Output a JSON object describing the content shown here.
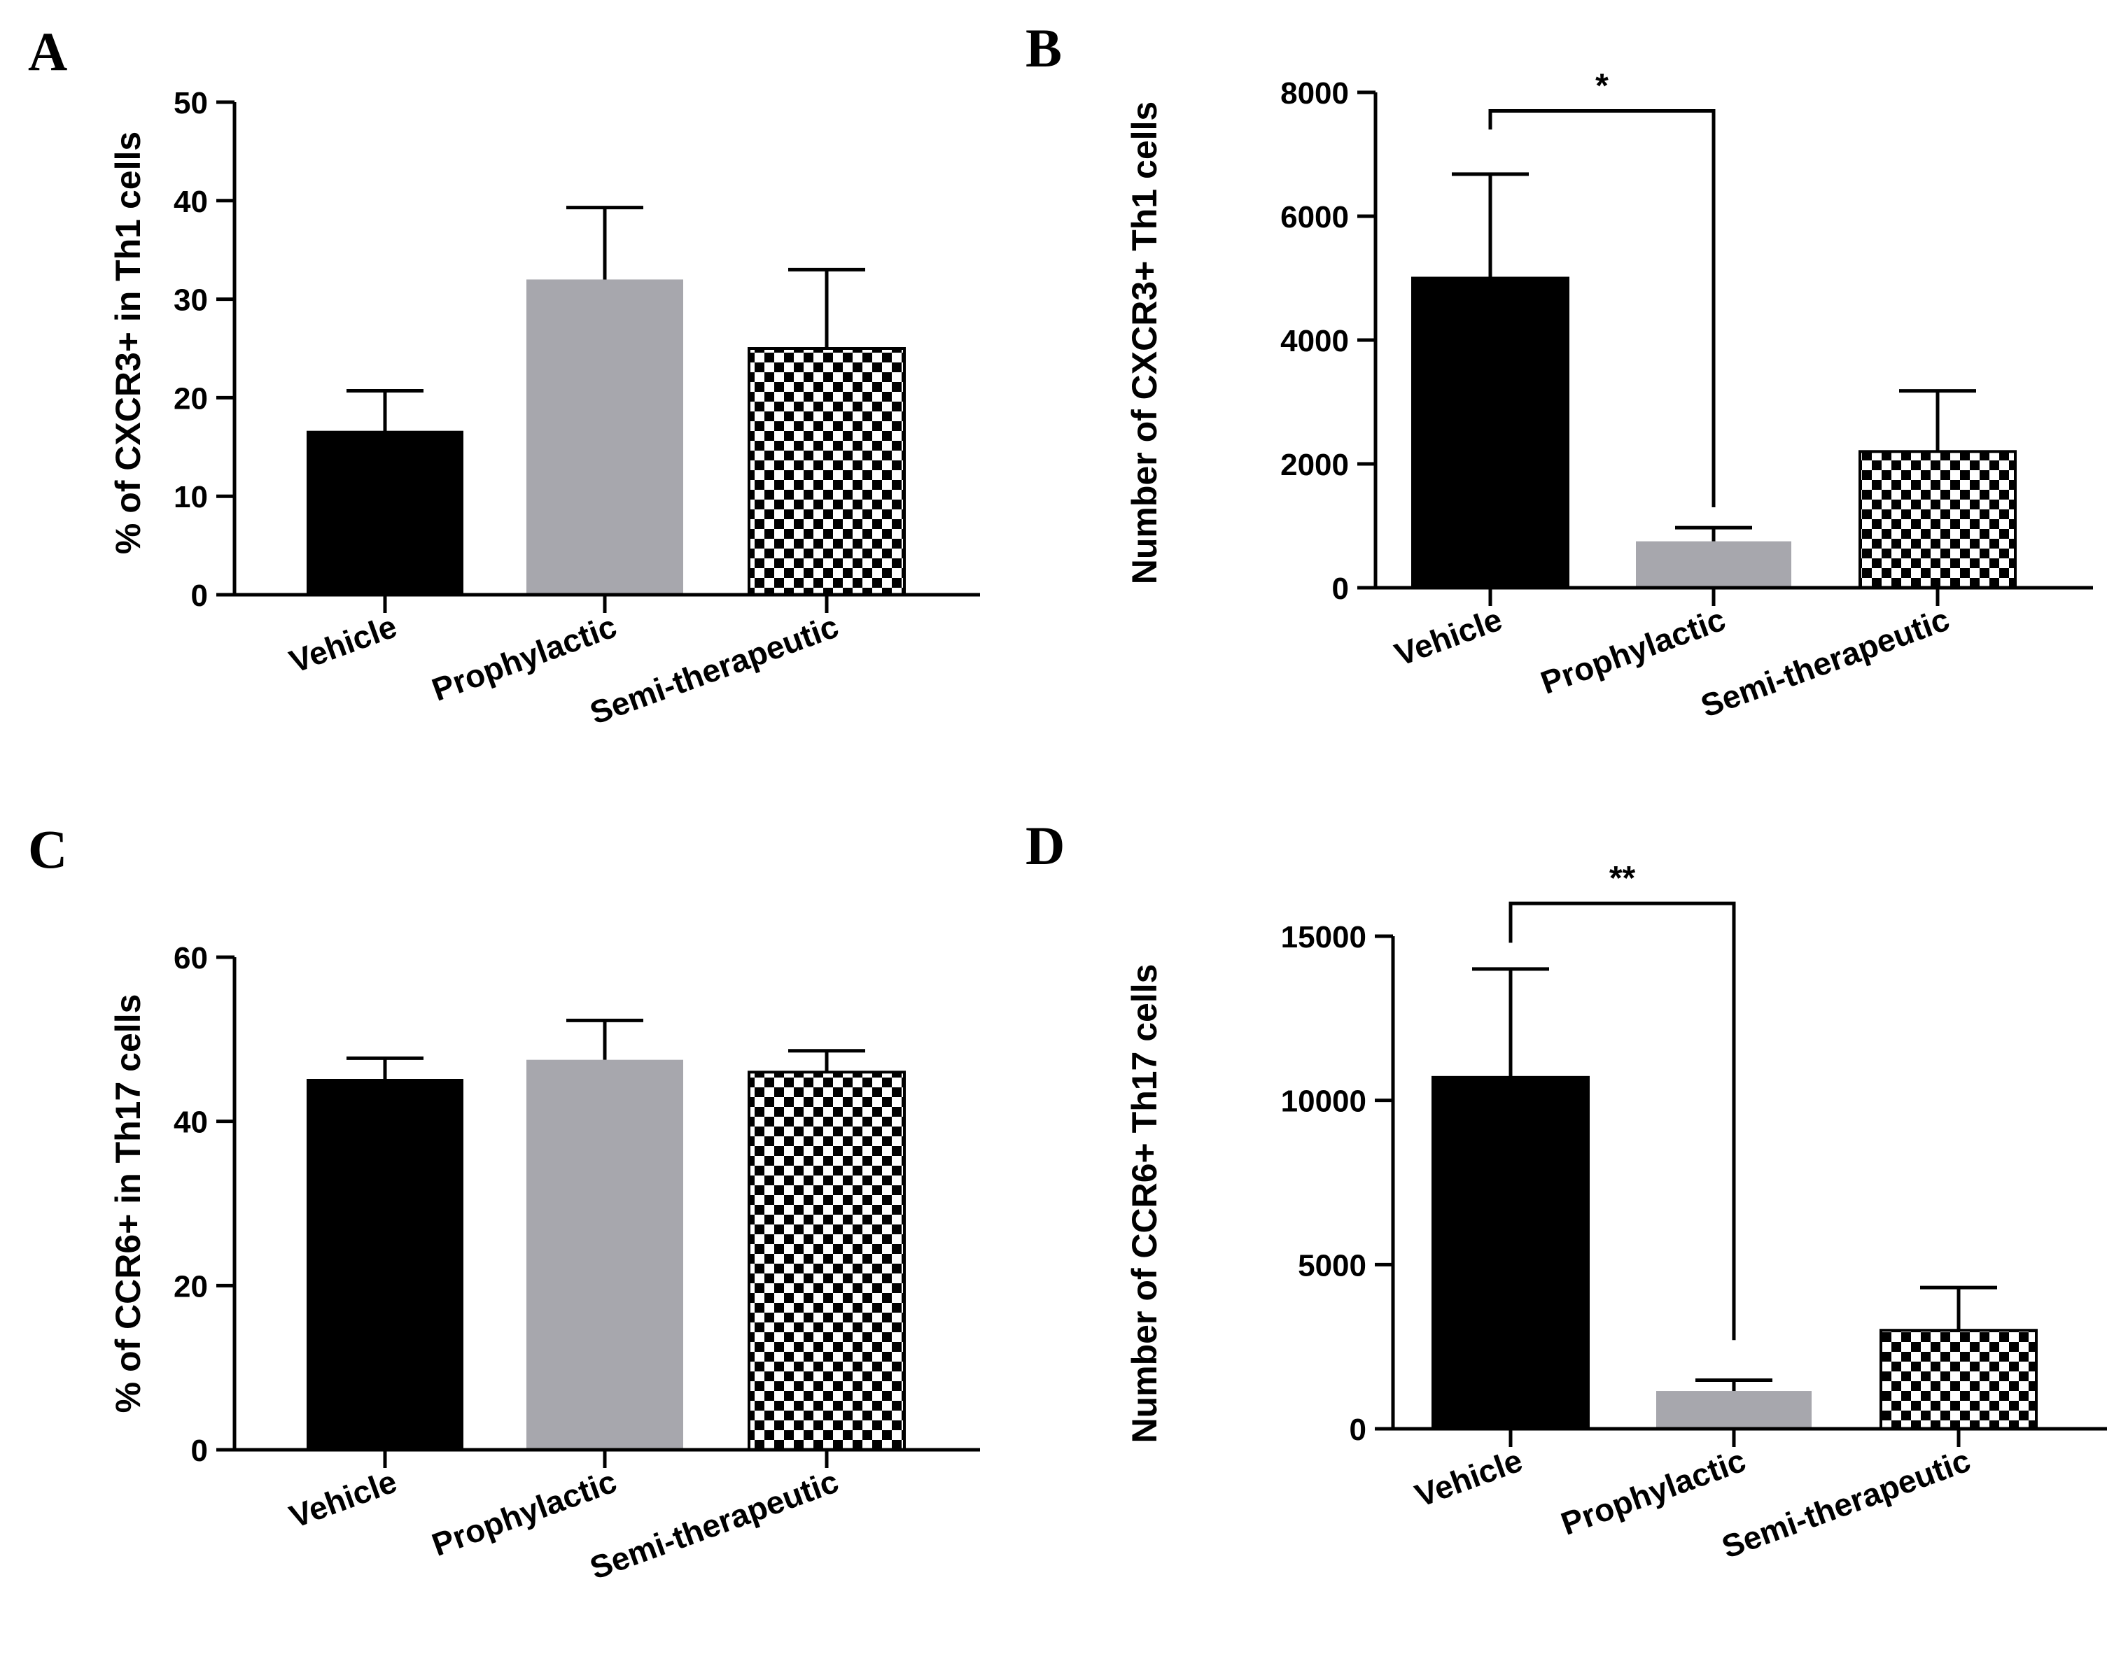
{
  "colors": {
    "vehicle": "#000000",
    "prophylactic": "#a7a7ad",
    "semi_therapeutic_pattern": "checkerboard-black-white",
    "axis": "#000000"
  },
  "chart_data": [
    {
      "panel": "A",
      "type": "bar",
      "categories": [
        "Vehicle",
        "Prophylactic",
        "Semi-therapeutic"
      ],
      "values": [
        16.5,
        32,
        25
      ],
      "errors": [
        4.2,
        7.3,
        8.0
      ],
      "ylabel": "% of CXCR3+ in Th1 cells",
      "xlabel": "",
      "ylim": [
        0,
        50
      ],
      "yticks": [
        0,
        10,
        20,
        30,
        40,
        50
      ],
      "ytick_labels": [
        "0",
        "10",
        "20",
        "30",
        "40",
        "50"
      ],
      "significance": null
    },
    {
      "panel": "B",
      "type": "bar",
      "categories": [
        "Vehicle",
        "Prophylactic",
        "Semi-therapeutic"
      ],
      "values": [
        5000,
        750,
        2200
      ],
      "errors": [
        1680,
        220,
        980
      ],
      "ylabel": "Number of CXCR3+ Th1 cells",
      "xlabel": "",
      "ylim": [
        0,
        8000
      ],
      "yticks": [
        0,
        2000,
        4000,
        6000,
        8000
      ],
      "ytick_labels": [
        "0",
        "2000",
        "4000",
        "6000",
        "8000"
      ],
      "significance": {
        "from": 0,
        "to": 1,
        "label": "*",
        "level": 7700,
        "drop_from": 7400,
        "drop_to": 1300
      }
    },
    {
      "panel": "C",
      "type": "bar",
      "categories": [
        "Vehicle",
        "Prophylactic",
        "Semi-therapeutic"
      ],
      "values": [
        45,
        47.5,
        46
      ],
      "errors": [
        2.7,
        4.8,
        2.6
      ],
      "ylabel": "% of CCR6+ in Th17 cells",
      "xlabel": "",
      "ylim": [
        0,
        60
      ],
      "yticks": [
        0,
        20,
        40,
        60
      ],
      "ytick_labels": [
        "0",
        "20",
        "40",
        "60"
      ],
      "significance": null
    },
    {
      "panel": "D",
      "type": "bar",
      "categories": [
        "Vehicle",
        "Prophylactic",
        "Semi-therapeutic"
      ],
      "values": [
        10700,
        1150,
        3000
      ],
      "errors": [
        3300,
        330,
        1300
      ],
      "ylabel": "Number of CCR6+ Th17 cells",
      "xlabel": "",
      "ylim": [
        0,
        15000
      ],
      "yticks": [
        0,
        5000,
        10000,
        15000
      ],
      "ytick_labels": [
        "0",
        "5000",
        "10000",
        "15000"
      ],
      "significance": {
        "from": 0,
        "to": 1,
        "label": "**",
        "level": 16000,
        "drop_from": 14800,
        "drop_to": 2700
      }
    }
  ]
}
